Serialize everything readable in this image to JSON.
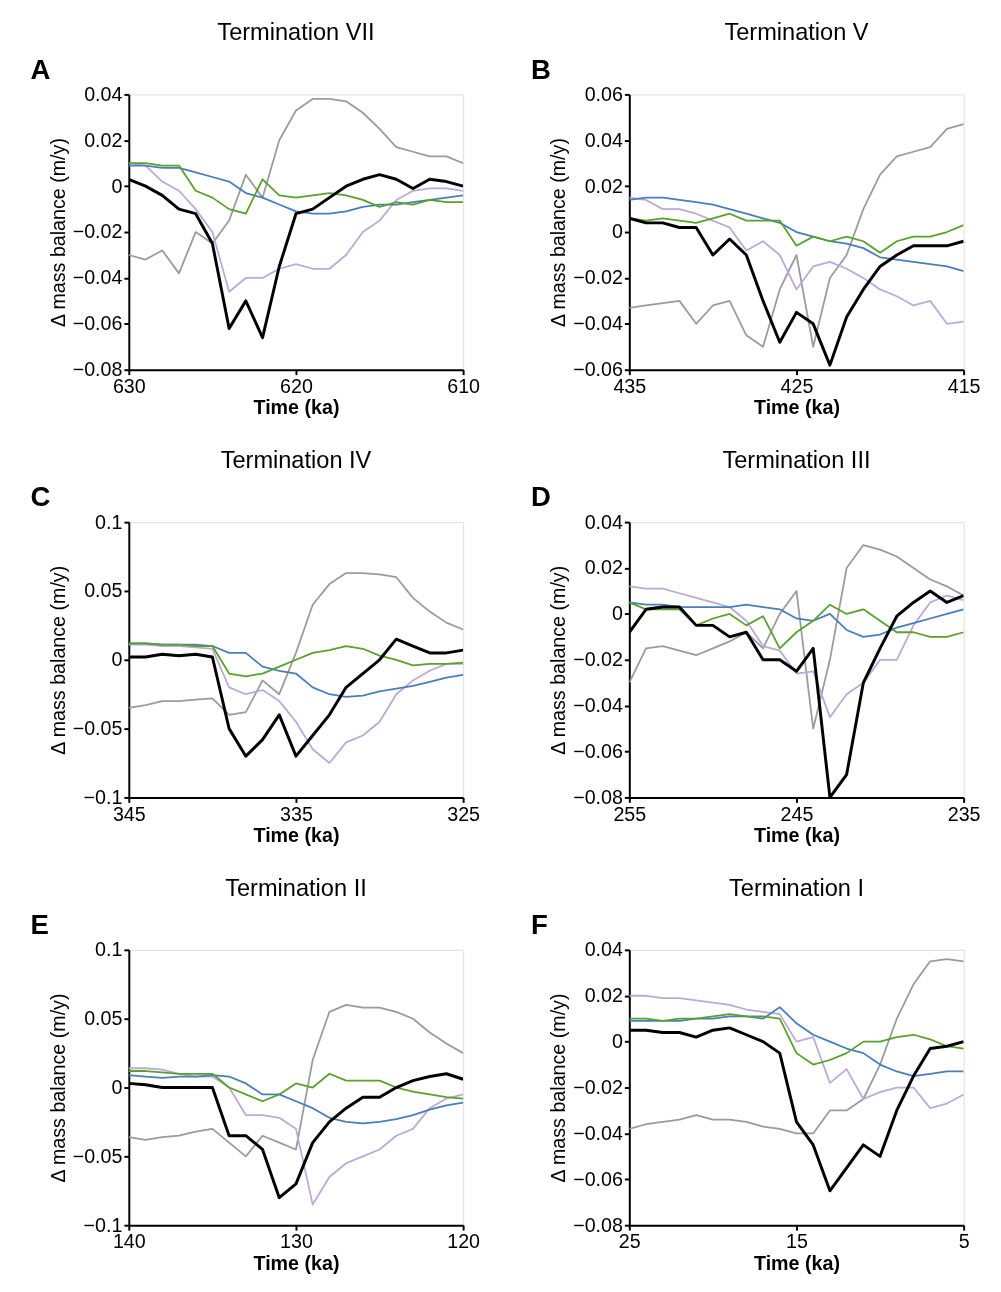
{
  "chart_data": [
    {
      "type": "line",
      "title": "Termination VII",
      "annotations": [
        "A"
      ],
      "xlabel": "Time (ka)",
      "ylabel": "Δ mass balance (m/y)",
      "xlim": [
        630,
        610
      ],
      "xticks": [
        630,
        620,
        610
      ],
      "ylim": [
        -0.08,
        0.04
      ],
      "yticks": [
        -0.08,
        -0.06,
        -0.04,
        -0.02,
        0,
        0.02,
        0.04
      ],
      "grid": false,
      "line_style": "solid",
      "marker": "none",
      "x": [
        630,
        629,
        628,
        627,
        626,
        625,
        624,
        623,
        622,
        621,
        620,
        619,
        618,
        617,
        616,
        615,
        614,
        613,
        612,
        611,
        610
      ],
      "series": [
        {
          "color": "#9b9b9b",
          "values": [
            -0.03,
            -0.032,
            -0.028,
            -0.038,
            -0.02,
            -0.025,
            -0.015,
            0.005,
            -0.005,
            0.02,
            0.033,
            0.038,
            0.038,
            0.037,
            0.032,
            0.025,
            0.017,
            0.015,
            0.013,
            0.013,
            0.01
          ]
        },
        {
          "color": "#bca9d8",
          "values": [
            0.01,
            0.009,
            0.002,
            -0.002,
            -0.01,
            -0.02,
            -0.046,
            -0.04,
            -0.04,
            -0.036,
            -0.034,
            -0.036,
            -0.036,
            -0.03,
            -0.02,
            -0.015,
            -0.006,
            -0.002,
            -0.001,
            -0.001,
            -0.002
          ]
        },
        {
          "color": "#4a7ebb",
          "values": [
            0.009,
            0.009,
            0.008,
            0.008,
            0.006,
            0.004,
            0.002,
            -0.003,
            -0.005,
            -0.008,
            -0.011,
            -0.012,
            -0.012,
            -0.011,
            -0.009,
            -0.008,
            -0.008,
            -0.007,
            -0.006,
            -0.005,
            -0.004
          ]
        },
        {
          "color": "#5aa02c",
          "values": [
            0.01,
            0.01,
            0.009,
            0.009,
            -0.002,
            -0.005,
            -0.01,
            -0.012,
            0.003,
            -0.004,
            -0.005,
            -0.004,
            -0.003,
            -0.004,
            -0.006,
            -0.009,
            -0.007,
            -0.008,
            -0.006,
            -0.007,
            -0.007
          ]
        },
        {
          "color": "#000000",
          "values": [
            0.003,
            0.0,
            -0.004,
            -0.01,
            -0.012,
            -0.025,
            -0.062,
            -0.05,
            -0.066,
            -0.035,
            -0.012,
            -0.01,
            -0.005,
            0.0,
            0.003,
            0.005,
            0.003,
            -0.001,
            0.003,
            0.002,
            0.0
          ]
        }
      ]
    },
    {
      "type": "line",
      "title": "Termination V",
      "annotations": [
        "B"
      ],
      "xlabel": "Time (ka)",
      "ylabel": "Δ mass balance (m/y)",
      "xlim": [
        435,
        415
      ],
      "xticks": [
        435,
        425,
        415
      ],
      "ylim": [
        -0.06,
        0.06
      ],
      "yticks": [
        -0.06,
        -0.04,
        -0.02,
        0,
        0.02,
        0.04,
        0.06
      ],
      "grid": false,
      "line_style": "solid",
      "marker": "none",
      "x": [
        435,
        434,
        433,
        432,
        431,
        430,
        429,
        428,
        427,
        426,
        425,
        424,
        423,
        422,
        421,
        420,
        419,
        418,
        417,
        416,
        415
      ],
      "series": [
        {
          "color": "#9b9b9b",
          "values": [
            -0.033,
            -0.032,
            -0.031,
            -0.03,
            -0.04,
            -0.032,
            -0.03,
            -0.045,
            -0.05,
            -0.025,
            -0.01,
            -0.05,
            -0.02,
            -0.01,
            0.01,
            0.025,
            0.033,
            0.035,
            0.037,
            0.045,
            0.047
          ]
        },
        {
          "color": "#bca9d8",
          "values": [
            0.015,
            0.014,
            0.01,
            0.01,
            0.008,
            0.005,
            0.002,
            -0.008,
            -0.004,
            -0.01,
            -0.025,
            -0.015,
            -0.013,
            -0.016,
            -0.02,
            -0.025,
            -0.028,
            -0.032,
            -0.03,
            -0.04,
            -0.039
          ]
        },
        {
          "color": "#4a7ebb",
          "values": [
            0.014,
            0.015,
            0.015,
            0.014,
            0.013,
            0.012,
            0.01,
            0.008,
            0.006,
            0.004,
            0.0,
            -0.002,
            -0.004,
            -0.005,
            -0.007,
            -0.011,
            -0.012,
            -0.013,
            -0.014,
            -0.015,
            -0.017
          ]
        },
        {
          "color": "#5aa02c",
          "values": [
            0.006,
            0.005,
            0.006,
            0.005,
            0.004,
            0.006,
            0.008,
            0.005,
            0.005,
            0.005,
            -0.006,
            -0.002,
            -0.004,
            -0.002,
            -0.004,
            -0.009,
            -0.004,
            -0.002,
            -0.002,
            0.0,
            0.003
          ]
        },
        {
          "color": "#000000",
          "values": [
            0.006,
            0.004,
            0.004,
            0.002,
            0.002,
            -0.01,
            -0.003,
            -0.01,
            -0.03,
            -0.048,
            -0.035,
            -0.04,
            -0.058,
            -0.037,
            -0.025,
            -0.015,
            -0.01,
            -0.006,
            -0.006,
            -0.006,
            -0.004
          ]
        }
      ]
    },
    {
      "type": "line",
      "title": "Termination IV",
      "annotations": [
        "C"
      ],
      "xlabel": "Time (ka)",
      "ylabel": "Δ mass balance (m/y)",
      "xlim": [
        345,
        325
      ],
      "xticks": [
        345,
        335,
        325
      ],
      "ylim": [
        -0.1,
        0.1
      ],
      "yticks": [
        -0.1,
        -0.05,
        0,
        0.05,
        0.1
      ],
      "grid": false,
      "line_style": "solid",
      "marker": "none",
      "x": [
        345,
        344,
        343,
        342,
        341,
        340,
        339,
        338,
        337,
        336,
        335,
        334,
        333,
        332,
        331,
        330,
        329,
        328,
        327,
        326,
        325
      ],
      "series": [
        {
          "color": "#9b9b9b",
          "values": [
            -0.035,
            -0.033,
            -0.03,
            -0.03,
            -0.029,
            -0.028,
            -0.04,
            -0.038,
            -0.015,
            -0.025,
            0.005,
            0.04,
            0.055,
            0.063,
            0.063,
            0.062,
            0.06,
            0.045,
            0.035,
            0.027,
            0.022
          ]
        },
        {
          "color": "#bca9d8",
          "values": [
            0.011,
            0.011,
            0.01,
            0.01,
            0.009,
            0.008,
            -0.02,
            -0.025,
            -0.022,
            -0.03,
            -0.045,
            -0.065,
            -0.075,
            -0.06,
            -0.055,
            -0.045,
            -0.025,
            -0.015,
            -0.008,
            -0.003,
            -0.003
          ]
        },
        {
          "color": "#4a7ebb",
          "values": [
            0.012,
            0.012,
            0.011,
            0.011,
            0.011,
            0.01,
            0.005,
            0.005,
            -0.005,
            -0.008,
            -0.01,
            -0.02,
            -0.025,
            -0.027,
            -0.026,
            -0.023,
            -0.021,
            -0.019,
            -0.016,
            -0.013,
            -0.011
          ]
        },
        {
          "color": "#5aa02c",
          "values": [
            0.012,
            0.012,
            0.011,
            0.011,
            0.01,
            0.01,
            -0.01,
            -0.012,
            -0.01,
            -0.005,
            0.0,
            0.005,
            0.007,
            0.01,
            0.008,
            0.003,
            0.0,
            -0.004,
            -0.003,
            -0.003,
            -0.002
          ]
        },
        {
          "color": "#000000",
          "values": [
            0.002,
            0.002,
            0.004,
            0.003,
            0.004,
            0.002,
            -0.05,
            -0.07,
            -0.058,
            -0.04,
            -0.07,
            -0.055,
            -0.04,
            -0.02,
            -0.01,
            0.0,
            0.015,
            0.01,
            0.005,
            0.005,
            0.007
          ]
        }
      ]
    },
    {
      "type": "line",
      "title": "Termination III",
      "annotations": [
        "D"
      ],
      "xlabel": "Time (ka)",
      "ylabel": "Δ mass balance (m/y)",
      "xlim": [
        255,
        235
      ],
      "xticks": [
        255,
        245,
        235
      ],
      "ylim": [
        -0.08,
        0.04
      ],
      "yticks": [
        -0.08,
        -0.06,
        -0.04,
        -0.02,
        0,
        0.02,
        0.04
      ],
      "grid": false,
      "line_style": "solid",
      "marker": "none",
      "x": [
        255,
        254,
        253,
        252,
        251,
        250,
        249,
        248,
        247,
        246,
        245,
        244,
        243,
        242,
        241,
        240,
        239,
        238,
        237,
        236,
        235
      ],
      "series": [
        {
          "color": "#9b9b9b",
          "values": [
            -0.03,
            -0.015,
            -0.014,
            -0.016,
            -0.018,
            -0.015,
            -0.012,
            -0.008,
            -0.015,
            0.0,
            0.01,
            -0.05,
            -0.02,
            0.02,
            0.03,
            0.028,
            0.025,
            0.02,
            0.015,
            0.012,
            0.008
          ]
        },
        {
          "color": "#bca9d8",
          "values": [
            0.012,
            0.011,
            0.011,
            0.009,
            0.007,
            0.005,
            0.003,
            -0.003,
            -0.014,
            -0.016,
            -0.026,
            -0.025,
            -0.045,
            -0.035,
            -0.03,
            -0.02,
            -0.02,
            -0.005,
            0.005,
            0.008,
            0.006
          ]
        },
        {
          "color": "#4a7ebb",
          "values": [
            0.005,
            0.004,
            0.004,
            0.003,
            0.003,
            0.003,
            0.003,
            0.004,
            0.003,
            0.002,
            -0.002,
            -0.003,
            0.0,
            -0.007,
            -0.01,
            -0.009,
            -0.006,
            -0.004,
            -0.002,
            0.0,
            0.002
          ]
        },
        {
          "color": "#5aa02c",
          "values": [
            0.005,
            0.002,
            0.002,
            0.002,
            -0.005,
            -0.002,
            0.0,
            -0.005,
            -0.001,
            -0.015,
            -0.008,
            -0.003,
            0.004,
            0.0,
            0.002,
            -0.003,
            -0.008,
            -0.008,
            -0.01,
            -0.01,
            -0.008
          ]
        },
        {
          "color": "#000000",
          "values": [
            -0.008,
            0.002,
            0.003,
            0.003,
            -0.005,
            -0.005,
            -0.01,
            -0.008,
            -0.02,
            -0.02,
            -0.025,
            -0.015,
            -0.08,
            -0.07,
            -0.03,
            -0.015,
            -0.001,
            0.005,
            0.01,
            0.005,
            0.008
          ]
        }
      ]
    },
    {
      "type": "line",
      "title": "Termination II",
      "annotations": [
        "E"
      ],
      "xlabel": "Time (ka)",
      "ylabel": "Δ mass balance (m/y)",
      "xlim": [
        140,
        120
      ],
      "xticks": [
        140,
        130,
        120
      ],
      "ylim": [
        -0.1,
        0.1
      ],
      "yticks": [
        -0.1,
        -0.05,
        0,
        0.05,
        0.1
      ],
      "grid": false,
      "line_style": "solid",
      "marker": "none",
      "x": [
        140,
        139,
        138,
        137,
        136,
        135,
        134,
        133,
        132,
        131,
        130,
        129,
        128,
        127,
        126,
        125,
        124,
        123,
        122,
        121,
        120
      ],
      "series": [
        {
          "color": "#9b9b9b",
          "values": [
            -0.036,
            -0.038,
            -0.036,
            -0.035,
            -0.032,
            -0.03,
            -0.04,
            -0.05,
            -0.035,
            -0.04,
            -0.045,
            0.02,
            0.055,
            0.06,
            0.058,
            0.058,
            0.055,
            0.05,
            0.04,
            0.032,
            0.025
          ]
        },
        {
          "color": "#bca9d8",
          "values": [
            0.014,
            0.014,
            0.013,
            0.01,
            0.008,
            0.008,
            0.0,
            -0.02,
            -0.02,
            -0.022,
            -0.03,
            -0.085,
            -0.065,
            -0.055,
            -0.05,
            -0.045,
            -0.035,
            -0.03,
            -0.015,
            -0.008,
            -0.005
          ]
        },
        {
          "color": "#4a7ebb",
          "values": [
            0.009,
            0.008,
            0.007,
            0.008,
            0.008,
            0.009,
            0.008,
            0.003,
            -0.005,
            -0.005,
            -0.01,
            -0.015,
            -0.022,
            -0.025,
            -0.026,
            -0.025,
            -0.023,
            -0.02,
            -0.016,
            -0.013,
            -0.011
          ]
        },
        {
          "color": "#5aa02c",
          "values": [
            0.012,
            0.012,
            0.011,
            0.01,
            0.01,
            0.01,
            0.0,
            -0.005,
            -0.01,
            -0.005,
            0.003,
            0.0,
            0.01,
            0.005,
            0.005,
            0.005,
            0.0,
            -0.003,
            -0.005,
            -0.007,
            -0.008
          ]
        },
        {
          "color": "#000000",
          "values": [
            0.003,
            0.002,
            0.0,
            0.0,
            0.0,
            0.0,
            -0.035,
            -0.035,
            -0.045,
            -0.08,
            -0.07,
            -0.04,
            -0.025,
            -0.015,
            -0.007,
            -0.007,
            0.0,
            0.005,
            0.008,
            0.01,
            0.006
          ]
        }
      ]
    },
    {
      "type": "line",
      "title": "Termination I",
      "annotations": [
        "F"
      ],
      "xlabel": "Time (ka)",
      "ylabel": "Δ mass balance (m/y)",
      "xlim": [
        25,
        5
      ],
      "xticks": [
        25,
        15,
        5
      ],
      "ylim": [
        -0.08,
        0.04
      ],
      "yticks": [
        -0.08,
        -0.06,
        -0.04,
        -0.02,
        0,
        0.02,
        0.04
      ],
      "grid": false,
      "line_style": "solid",
      "marker": "none",
      "x": [
        25,
        24,
        23,
        22,
        21,
        20,
        19,
        18,
        17,
        16,
        15,
        14,
        13,
        12,
        11,
        10,
        9,
        8,
        7,
        6,
        5
      ],
      "series": [
        {
          "color": "#9b9b9b",
          "values": [
            -0.038,
            -0.036,
            -0.035,
            -0.034,
            -0.032,
            -0.034,
            -0.034,
            -0.035,
            -0.037,
            -0.038,
            -0.04,
            -0.04,
            -0.03,
            -0.03,
            -0.025,
            -0.01,
            0.01,
            0.025,
            0.035,
            0.036,
            0.035
          ]
        },
        {
          "color": "#bca9d8",
          "values": [
            0.02,
            0.02,
            0.019,
            0.019,
            0.018,
            0.017,
            0.016,
            0.014,
            0.013,
            0.012,
            0.0,
            0.002,
            -0.018,
            -0.012,
            -0.025,
            -0.022,
            -0.02,
            -0.02,
            -0.029,
            -0.027,
            -0.023
          ]
        },
        {
          "color": "#4a7ebb",
          "values": [
            0.009,
            0.009,
            0.009,
            0.009,
            0.01,
            0.01,
            0.011,
            0.011,
            0.01,
            0.015,
            0.008,
            0.003,
            0.0,
            -0.003,
            -0.005,
            -0.01,
            -0.013,
            -0.015,
            -0.014,
            -0.013,
            -0.013
          ]
        },
        {
          "color": "#5aa02c",
          "values": [
            0.01,
            0.01,
            0.009,
            0.01,
            0.01,
            0.011,
            0.012,
            0.011,
            0.011,
            0.01,
            -0.005,
            -0.01,
            -0.008,
            -0.005,
            0.0,
            0.0,
            0.002,
            0.003,
            0.001,
            -0.002,
            -0.003
          ]
        },
        {
          "color": "#000000",
          "values": [
            0.005,
            0.005,
            0.004,
            0.004,
            0.002,
            0.005,
            0.006,
            0.003,
            0.0,
            -0.005,
            -0.035,
            -0.045,
            -0.065,
            -0.055,
            -0.045,
            -0.05,
            -0.03,
            -0.015,
            -0.003,
            -0.002,
            0.0
          ]
        }
      ]
    }
  ]
}
